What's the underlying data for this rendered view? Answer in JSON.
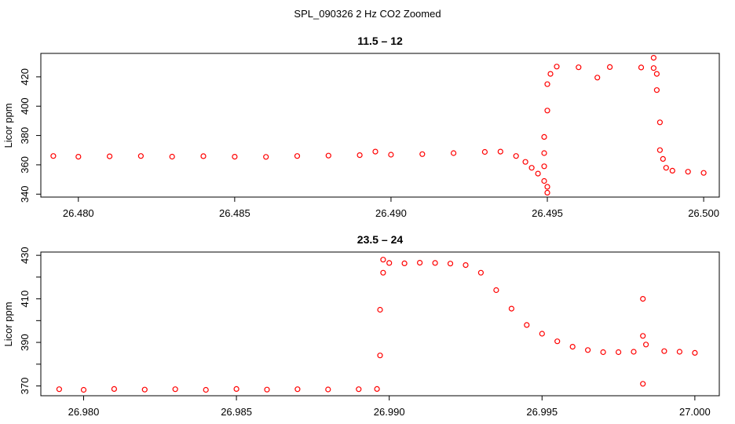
{
  "figure": {
    "suptitle": "SPL_090326  2 Hz CO2 Zoomed"
  },
  "style": {
    "point_color": "#ff0000",
    "axis_color": "#000000",
    "background": "#ffffff"
  },
  "chart_data": [
    {
      "type": "scatter",
      "title": "11.5 – 12",
      "xlabel": "",
      "ylabel": "Licor ppm",
      "xlim": [
        26.4788,
        26.5005
      ],
      "ylim": [
        338,
        436
      ],
      "xticks": [
        26.48,
        26.485,
        26.49,
        26.495,
        26.5
      ],
      "xtick_labels": [
        "26.480",
        "26.485",
        "26.490",
        "26.495",
        "26.500"
      ],
      "yticks": [
        340,
        360,
        380,
        400,
        420
      ],
      "ytick_labels": [
        "340",
        "360",
        "380",
        "400",
        "420"
      ],
      "grid": false,
      "series": [
        {
          "marker": "open-circle",
          "points": [
            [
              26.4792,
              366
            ],
            [
              26.48,
              365.5
            ],
            [
              26.481,
              365.8
            ],
            [
              26.482,
              366
            ],
            [
              26.483,
              365.6
            ],
            [
              26.484,
              365.9
            ],
            [
              26.485,
              365.5
            ],
            [
              26.486,
              365.4
            ],
            [
              26.487,
              366
            ],
            [
              26.488,
              366.3
            ],
            [
              26.489,
              366.6
            ],
            [
              26.4895,
              369
            ],
            [
              26.49,
              366.9
            ],
            [
              26.491,
              367.3
            ],
            [
              26.492,
              368
            ],
            [
              26.493,
              368.8
            ],
            [
              26.4935,
              369
            ],
            [
              26.494,
              366
            ],
            [
              26.4943,
              362
            ],
            [
              26.4945,
              358
            ],
            [
              26.4947,
              354
            ],
            [
              26.4949,
              349
            ],
            [
              26.495,
              345
            ],
            [
              26.495,
              341
            ],
            [
              26.4949,
              359
            ],
            [
              26.4949,
              368
            ],
            [
              26.4949,
              379
            ],
            [
              26.495,
              397
            ],
            [
              26.495,
              415
            ],
            [
              26.4951,
              422
            ],
            [
              26.4953,
              427
            ],
            [
              26.496,
              426.5
            ],
            [
              26.4966,
              419.5
            ],
            [
              26.497,
              426.7
            ],
            [
              26.498,
              426.4
            ],
            [
              26.4984,
              426
            ],
            [
              26.4984,
              433
            ],
            [
              26.4985,
              422
            ],
            [
              26.4985,
              411
            ],
            [
              26.4986,
              389
            ],
            [
              26.4986,
              370
            ],
            [
              26.4987,
              364
            ],
            [
              26.4988,
              358
            ],
            [
              26.499,
              356
            ],
            [
              26.4995,
              355.3
            ],
            [
              26.5,
              354.5
            ]
          ]
        }
      ]
    },
    {
      "type": "scatter",
      "title": "23.5 – 24",
      "xlabel": "",
      "ylabel": "Licor ppm",
      "xlim": [
        26.9786,
        27.0008
      ],
      "ylim": [
        365.5,
        431.5
      ],
      "xticks": [
        26.98,
        26.985,
        26.99,
        26.995,
        27.0
      ],
      "xtick_labels": [
        "26.980",
        "26.985",
        "26.990",
        "26.995",
        "27.000"
      ],
      "yticks": [
        370,
        380,
        390,
        400,
        410,
        420,
        430
      ],
      "ytick_labels": [
        "370",
        "",
        "390",
        "",
        "410",
        "",
        "430"
      ],
      "grid": false,
      "series": [
        {
          "marker": "open-circle",
          "points": [
            [
              26.9792,
              368.5
            ],
            [
              26.98,
              368.2
            ],
            [
              26.981,
              368.6
            ],
            [
              26.982,
              368.3
            ],
            [
              26.983,
              368.5
            ],
            [
              26.984,
              368.2
            ],
            [
              26.985,
              368.6
            ],
            [
              26.986,
              368.3
            ],
            [
              26.987,
              368.5
            ],
            [
              26.988,
              368.4
            ],
            [
              26.989,
              368.5
            ],
            [
              26.9896,
              368.6
            ],
            [
              26.9897,
              384
            ],
            [
              26.9897,
              405
            ],
            [
              26.9898,
              422
            ],
            [
              26.9898,
              428
            ],
            [
              26.99,
              426.5
            ],
            [
              26.9905,
              426.3
            ],
            [
              26.991,
              426.6
            ],
            [
              26.9915,
              426.5
            ],
            [
              26.992,
              426.2
            ],
            [
              26.9925,
              425.5
            ],
            [
              26.993,
              422
            ],
            [
              26.9935,
              414
            ],
            [
              26.994,
              405.5
            ],
            [
              26.9945,
              398
            ],
            [
              26.995,
              394
            ],
            [
              26.9955,
              390.5
            ],
            [
              26.996,
              388
            ],
            [
              26.9965,
              386.5
            ],
            [
              26.997,
              385.5
            ],
            [
              26.9975,
              385.5
            ],
            [
              26.998,
              385.7
            ],
            [
              26.9983,
              410
            ],
            [
              26.9983,
              371
            ],
            [
              26.9983,
              393
            ],
            [
              26.9984,
              389
            ],
            [
              26.999,
              386
            ],
            [
              26.9995,
              385.7
            ],
            [
              27.0,
              385.2
            ]
          ]
        }
      ]
    }
  ]
}
